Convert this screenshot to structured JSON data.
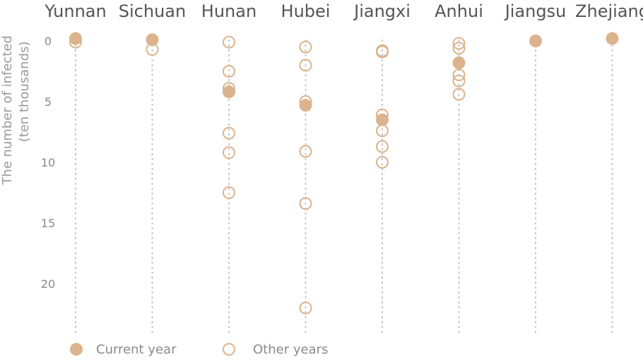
{
  "chart_data": {
    "type": "scatter",
    "categories": [
      "Yunnan",
      "Sichuan",
      "Hunan",
      "Hubei",
      "Jiangxi",
      "Anhui",
      "Jiangsu",
      "Zhejiang"
    ],
    "ylabel_line1": "The number of infected",
    "ylabel_line2": "(ten thousands)",
    "yticks": [
      0,
      5,
      10,
      15,
      20
    ],
    "ylim": [
      0,
      22.5
    ],
    "y_inverted": true,
    "legend": {
      "current_label": "Current year",
      "other_label": "Other years",
      "placement": "bottom-left"
    },
    "colors": {
      "marker": "#dbb38c",
      "guide": "#c8c8c8"
    },
    "series": [
      {
        "name": "Other years",
        "style": "hollow",
        "values": [
          [
            0.1
          ],
          [
            0.7
          ],
          [
            0.1,
            2.5,
            3.9,
            7.6,
            9.2,
            12.5
          ],
          [
            0.5,
            2.0,
            5.0,
            9.1,
            13.4,
            22.0
          ],
          [
            0.8,
            0.9,
            6.1,
            7.4,
            8.7,
            10.0
          ],
          [
            0.2,
            0.6,
            2.8,
            3.3,
            4.4
          ],
          [],
          []
        ]
      },
      {
        "name": "Current year",
        "style": "filled",
        "values": [
          [
            -0.2
          ],
          [
            -0.1
          ],
          [
            4.2
          ],
          [
            5.3
          ],
          [
            6.5
          ],
          [
            1.8
          ],
          [
            0.0
          ],
          [
            -0.2
          ]
        ]
      }
    ]
  }
}
